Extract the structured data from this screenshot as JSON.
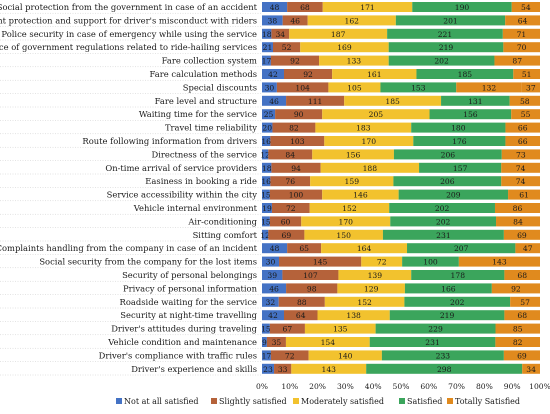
{
  "chart_data": {
    "type": "bar",
    "orientation": "horizontal",
    "stacked": "percent",
    "categories": [
      "Social protection from the government in case of an accident",
      "Government protection and support for driver's misconduct with riders",
      "Police security in case of emergency while using the service",
      "Presence of government regulations related to ride-hailing services",
      "Fare collection system",
      "Fare calculation methods",
      "Special discounts",
      "Fare level and structure",
      "Waiting time for the service",
      "Travel time reliability",
      "Route following information from drivers",
      "Directness of the service",
      "On-time arrival of service providers",
      "Easiness in booking a ride",
      "Service accessibility within the city",
      "Vehicle internal environment",
      "Air-conditioning",
      "Sitting comfort",
      "Complaints handling from the company in case of an incident",
      "Social security from the company for the lost items",
      "Security of personal belongings",
      "Privacy of personal information",
      "Roadside waiting for the service",
      "Security at night-time travelling",
      "Driver's attitudes during traveling",
      "Vehicle condition and maintenance",
      "Driver's compliance with traffic rules",
      "Driver's experience and skills"
    ],
    "series": [
      {
        "name": "Not at all satisfied",
        "color": "#4472C4",
        "values": [
          48,
          38,
          18,
          21,
          17,
          42,
          30,
          46,
          25,
          20,
          16,
          12,
          18,
          16,
          15,
          19,
          15,
          12,
          48,
          30,
          39,
          46,
          32,
          42,
          15,
          9,
          17,
          23
        ]
      },
      {
        "name": "Slightly satisfied",
        "color": "#B5623A",
        "values": [
          68,
          46,
          34,
          52,
          92,
          92,
          104,
          111,
          90,
          82,
          103,
          84,
          94,
          76,
          100,
          72,
          60,
          69,
          65,
          145,
          107,
          98,
          88,
          64,
          67,
          35,
          72,
          33
        ]
      },
      {
        "name": "Moderately satisfied",
        "color": "#F2C22E",
        "values": [
          171,
          162,
          187,
          169,
          133,
          161,
          105,
          185,
          205,
          183,
          170,
          156,
          188,
          159,
          146,
          152,
          170,
          150,
          164,
          72,
          139,
          129,
          152,
          138,
          135,
          154,
          140,
          143
        ]
      },
      {
        "name": "Satisfied",
        "color": "#3BA55C",
        "values": [
          190,
          201,
          221,
          219,
          202,
          185,
          153,
          131,
          156,
          180,
          176,
          206,
          157,
          206,
          209,
          202,
          202,
          231,
          207,
          100,
          178,
          166,
          202,
          219,
          229,
          231,
          233,
          298
        ]
      },
      {
        "name": "Totally Satisfied",
        "color": "#E08A1E",
        "values": [
          54,
          64,
          71,
          70,
          87,
          51,
          132,
          58,
          55,
          66,
          66,
          73,
          74,
          74,
          61,
          86,
          84,
          69,
          47,
          143,
          68,
          92,
          57,
          68,
          85,
          82,
          69,
          34
        ]
      }
    ],
    "extra_segment": {
      "row": 6,
      "value": 37,
      "color": "#E08A1E"
    },
    "xaxis": {
      "ticks": [
        "0%",
        "10%",
        "20%",
        "30%",
        "40%",
        "50%",
        "60%",
        "70%",
        "80%",
        "90%",
        "100%"
      ]
    },
    "legend": "bottom",
    "grid": false
  }
}
